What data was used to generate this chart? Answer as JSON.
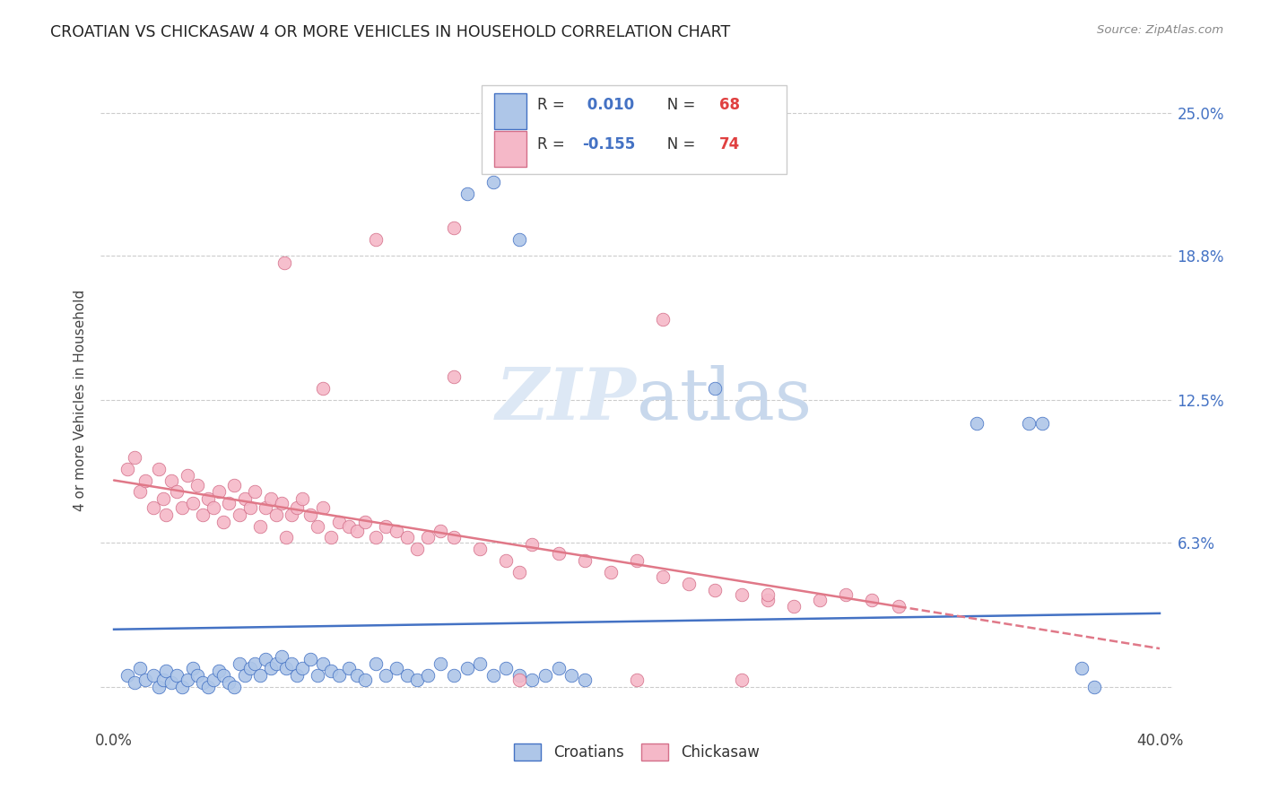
{
  "title": "CROATIAN VS CHICKASAW 4 OR MORE VEHICLES IN HOUSEHOLD CORRELATION CHART",
  "source": "Source: ZipAtlas.com",
  "ylabel": "4 or more Vehicles in Household",
  "xlim": [
    0.0,
    0.4
  ],
  "ylim": [
    -0.018,
    0.268
  ],
  "ytick_positions": [
    0.0,
    0.063,
    0.125,
    0.188,
    0.25
  ],
  "ytick_labels_right": [
    "",
    "6.3%",
    "12.5%",
    "18.8%",
    "25.0%"
  ],
  "xtick_positions": [
    0.0,
    0.1,
    0.2,
    0.3,
    0.4
  ],
  "xtick_labels": [
    "0.0%",
    "",
    "",
    "",
    "40.0%"
  ],
  "croatian_color": "#aec6e8",
  "croatian_edge": "#4472c4",
  "chickasaw_color": "#f5b8c8",
  "chickasaw_edge": "#d4708a",
  "trend_blue": "#4472c4",
  "trend_pink": "#e07888",
  "watermark_color": "#dde8f5",
  "r1": "0.010",
  "n1": "68",
  "r2": "-0.155",
  "n2": "74"
}
